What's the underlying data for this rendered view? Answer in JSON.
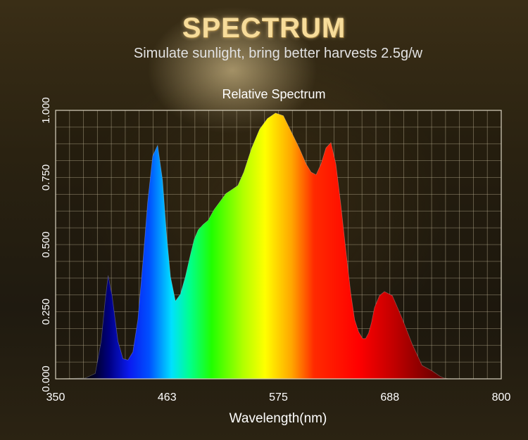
{
  "header": {
    "title": "SPECTRUM",
    "subtitle": "Simulate sunlight, bring better harvests 2.5g/w"
  },
  "chart_data": {
    "type": "area",
    "title": "Relative Spectrum",
    "xlabel": "Wavelength(nm)",
    "ylabel": "",
    "xlim": [
      350,
      800
    ],
    "ylim": [
      0,
      1
    ],
    "grid": true,
    "x_ticks": [
      "350",
      "463",
      "575",
      "688",
      "800"
    ],
    "y_ticks": [
      "0.000",
      "0.250",
      "0.500",
      "0.750",
      "1.000"
    ],
    "fill": "wavelength-color gradient",
    "x": [
      350,
      380,
      390,
      396,
      400,
      403,
      407,
      413,
      418,
      423,
      428,
      433,
      438,
      443,
      448,
      453,
      458,
      462,
      466,
      471,
      476,
      481,
      486,
      490,
      494,
      499,
      504,
      510,
      516,
      522,
      528,
      534,
      540,
      548,
      556,
      564,
      572,
      580,
      588,
      596,
      603,
      608,
      613,
      618,
      623,
      628,
      633,
      638,
      643,
      648,
      652,
      656,
      660,
      663,
      666,
      669,
      672,
      677,
      682,
      690,
      700,
      710,
      720,
      730,
      738,
      742,
      746,
      752,
      758,
      764,
      770,
      780,
      800
    ],
    "y": [
      0,
      0.003,
      0.02,
      0.14,
      0.29,
      0.385,
      0.31,
      0.14,
      0.075,
      0.07,
      0.1,
      0.22,
      0.43,
      0.66,
      0.83,
      0.87,
      0.74,
      0.54,
      0.38,
      0.29,
      0.315,
      0.38,
      0.46,
      0.52,
      0.555,
      0.575,
      0.59,
      0.63,
      0.66,
      0.69,
      0.705,
      0.72,
      0.77,
      0.86,
      0.93,
      0.97,
      0.99,
      0.98,
      0.92,
      0.86,
      0.8,
      0.77,
      0.76,
      0.8,
      0.86,
      0.88,
      0.8,
      0.65,
      0.48,
      0.32,
      0.22,
      0.175,
      0.15,
      0.15,
      0.17,
      0.21,
      0.265,
      0.31,
      0.325,
      0.31,
      0.225,
      0.13,
      0.05,
      0.03,
      0.01,
      0.003,
      0.001,
      0,
      0,
      0,
      0,
      0,
      0
    ]
  }
}
